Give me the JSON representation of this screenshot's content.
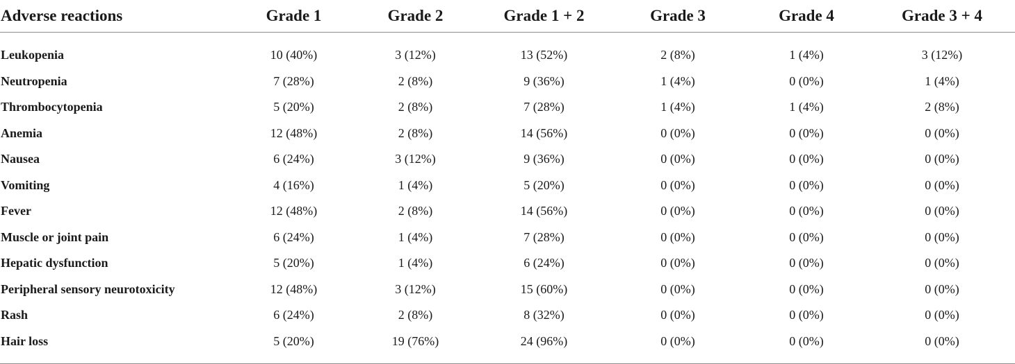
{
  "table": {
    "headers": [
      "Adverse reactions",
      "Grade 1",
      "Grade 2",
      "Grade 1 + 2",
      "Grade 3",
      "Grade 4",
      "Grade 3 + 4"
    ],
    "rows": [
      {
        "name": "Leukopenia",
        "cells": [
          "10 (40%)",
          "3 (12%)",
          "13 (52%)",
          "2 (8%)",
          "1 (4%)",
          "3 (12%)"
        ]
      },
      {
        "name": "Neutropenia",
        "cells": [
          "7 (28%)",
          "2 (8%)",
          "9 (36%)",
          "1 (4%)",
          "0 (0%)",
          "1 (4%)"
        ]
      },
      {
        "name": "Thrombocytopenia",
        "cells": [
          "5 (20%)",
          "2 (8%)",
          "7 (28%)",
          "1 (4%)",
          "1 (4%)",
          "2 (8%)"
        ]
      },
      {
        "name": "Anemia",
        "cells": [
          "12 (48%)",
          "2 (8%)",
          "14 (56%)",
          "0 (0%)",
          "0 (0%)",
          "0 (0%)"
        ]
      },
      {
        "name": "Nausea",
        "cells": [
          "6 (24%)",
          "3 (12%)",
          "9 (36%)",
          "0 (0%)",
          "0 (0%)",
          "0 (0%)"
        ]
      },
      {
        "name": "Vomiting",
        "cells": [
          "4 (16%)",
          "1 (4%)",
          "5 (20%)",
          "0 (0%)",
          "0 (0%)",
          "0 (0%)"
        ]
      },
      {
        "name": "Fever",
        "cells": [
          "12 (48%)",
          "2 (8%)",
          "14 (56%)",
          "0 (0%)",
          "0 (0%)",
          "0 (0%)"
        ]
      },
      {
        "name": "Muscle or joint pain",
        "cells": [
          "6 (24%)",
          "1 (4%)",
          "7 (28%)",
          "0 (0%)",
          "0 (0%)",
          "0 (0%)"
        ]
      },
      {
        "name": "Hepatic dysfunction",
        "cells": [
          "5 (20%)",
          "1 (4%)",
          "6 (24%)",
          "0 (0%)",
          "0 (0%)",
          "0 (0%)"
        ]
      },
      {
        "name": "Peripheral sensory neurotoxicity",
        "cells": [
          "12 (48%)",
          "3 (12%)",
          "15 (60%)",
          "0 (0%)",
          "0 (0%)",
          "0 (0%)"
        ]
      },
      {
        "name": "Rash",
        "cells": [
          "6 (24%)",
          "2 (8%)",
          "8 (32%)",
          "0 (0%)",
          "0 (0%)",
          "0 (0%)"
        ]
      },
      {
        "name": "Hair loss",
        "cells": [
          "5 (20%)",
          "19 (76%)",
          "24 (96%)",
          "0 (0%)",
          "0 (0%)",
          "0 (0%)"
        ]
      }
    ]
  }
}
